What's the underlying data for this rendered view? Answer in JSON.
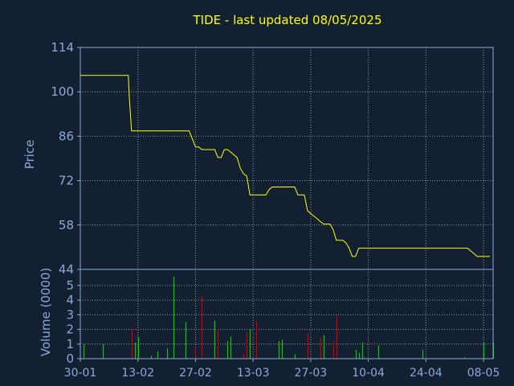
{
  "chart_data": [
    {
      "type": "line",
      "title": "TIDE - last updated 08/05/2025",
      "ylabel": "Price",
      "ylim": [
        44,
        114
      ],
      "y_ticks": [
        "114",
        "100",
        "86",
        "72",
        "58",
        "44"
      ],
      "x_ticks": [
        "30-01",
        "13-02",
        "27-02",
        "13-03",
        "27-03",
        "10-04",
        "24-04",
        "08-05"
      ],
      "grid": true,
      "colors": {
        "background": "#132032",
        "text": "#8aa8d8",
        "title": "#ffff00",
        "grid": "#cccccc",
        "line": "#ffff00"
      },
      "series": [
        {
          "values": [
            [
              0,
              105.2
            ],
            [
              1,
              105.2
            ],
            [
              2,
              105.2
            ],
            [
              3,
              105.2
            ],
            [
              4,
              105.2
            ],
            [
              5,
              105.2
            ],
            [
              6,
              105.2
            ],
            [
              7,
              105.2
            ],
            [
              8,
              105.2
            ],
            [
              9,
              105.2
            ],
            [
              10,
              105.2
            ],
            [
              11,
              105.2
            ],
            [
              12,
              105.2
            ],
            [
              13,
              105.2
            ],
            [
              14,
              105.2
            ],
            [
              15,
              105.2
            ],
            [
              15.3,
              98.5
            ],
            [
              16,
              87.7
            ],
            [
              17,
              87.7
            ],
            [
              18,
              87.7
            ],
            [
              19,
              87.7
            ],
            [
              20,
              87.7
            ],
            [
              21,
              87.7
            ],
            [
              22,
              87.7
            ],
            [
              23,
              87.7
            ],
            [
              24,
              87.7
            ],
            [
              25,
              87.7
            ],
            [
              26,
              87.7
            ],
            [
              27,
              87.7
            ],
            [
              28,
              87.7
            ],
            [
              29,
              87.7
            ],
            [
              30,
              87.7
            ],
            [
              31,
              87.7
            ],
            [
              32,
              87.7
            ],
            [
              33,
              87.7
            ],
            [
              34,
              87.7
            ],
            [
              35,
              85.2
            ],
            [
              36,
              82.6
            ],
            [
              37,
              82.6
            ],
            [
              38,
              81.8
            ],
            [
              39,
              81.8
            ],
            [
              40,
              81.8
            ],
            [
              41,
              81.8
            ],
            [
              42,
              81.8
            ],
            [
              43,
              79.3
            ],
            [
              44,
              79.3
            ],
            [
              45,
              81.8
            ],
            [
              46,
              81.8
            ],
            [
              47,
              81.0
            ],
            [
              48,
              80.1
            ],
            [
              49,
              79.3
            ],
            [
              50,
              75.9
            ],
            [
              51,
              74.2
            ],
            [
              52,
              73.4
            ],
            [
              53,
              67.5
            ],
            [
              54,
              67.5
            ],
            [
              55,
              67.5
            ],
            [
              56,
              67.5
            ],
            [
              57,
              67.5
            ],
            [
              58,
              67.5
            ],
            [
              59,
              69.2
            ],
            [
              60,
              70.0
            ],
            [
              61,
              70.0
            ],
            [
              62,
              70.0
            ],
            [
              63,
              70.0
            ],
            [
              64,
              70.0
            ],
            [
              65,
              70.0
            ],
            [
              66,
              70.0
            ],
            [
              67,
              70.0
            ],
            [
              68,
              67.5
            ],
            [
              69,
              67.5
            ],
            [
              70,
              67.5
            ],
            [
              71,
              62.5
            ],
            [
              72,
              61.6
            ],
            [
              73,
              60.8
            ],
            [
              74,
              60.0
            ],
            [
              75,
              59.1
            ],
            [
              76,
              58.3
            ],
            [
              77,
              58.3
            ],
            [
              78,
              58.3
            ],
            [
              79,
              56.6
            ],
            [
              80,
              53.2
            ],
            [
              81,
              53.2
            ],
            [
              82,
              53.2
            ],
            [
              83,
              52.4
            ],
            [
              84,
              50.7
            ],
            [
              85,
              48.1
            ],
            [
              86,
              48.1
            ],
            [
              87,
              50.7
            ],
            [
              88,
              50.7
            ],
            [
              89,
              50.7
            ],
            [
              90,
              50.7
            ],
            [
              91,
              50.7
            ],
            [
              92,
              50.7
            ],
            [
              93,
              50.7
            ],
            [
              94,
              50.7
            ],
            [
              95,
              50.7
            ],
            [
              96,
              50.7
            ],
            [
              97,
              50.7
            ],
            [
              98,
              50.7
            ],
            [
              99,
              50.7
            ],
            [
              100,
              50.7
            ],
            [
              101,
              50.7
            ],
            [
              102,
              50.7
            ],
            [
              103,
              50.7
            ],
            [
              104,
              50.7
            ],
            [
              105,
              50.7
            ],
            [
              106,
              50.7
            ],
            [
              107,
              50.7
            ],
            [
              108,
              50.7
            ],
            [
              109,
              50.7
            ],
            [
              110,
              50.7
            ],
            [
              111,
              50.7
            ],
            [
              112,
              50.7
            ],
            [
              113,
              50.7
            ],
            [
              114,
              50.7
            ],
            [
              115,
              50.7
            ],
            [
              116,
              50.7
            ],
            [
              117,
              50.7
            ],
            [
              118,
              50.7
            ],
            [
              119,
              50.7
            ],
            [
              120,
              50.7
            ],
            [
              121,
              50.7
            ],
            [
              122,
              49.8
            ],
            [
              123,
              49.0
            ],
            [
              124,
              48.1
            ],
            [
              125,
              48.1
            ],
            [
              126,
              48.1
            ],
            [
              127,
              48.1
            ],
            [
              128,
              48.1
            ]
          ]
        }
      ]
    },
    {
      "type": "bar",
      "ylabel": "Volume (0000)",
      "ylim": [
        0,
        5.5
      ],
      "y_ticks": [
        "5",
        "4",
        "3",
        "2",
        "1",
        "0"
      ],
      "x_ticks": [
        "30-01",
        "13-02",
        "27-02",
        "13-03",
        "27-03",
        "10-04",
        "24-04",
        "08-05"
      ],
      "grid": true,
      "colors": {
        "up": "#00cc00",
        "down": "#cc0000"
      },
      "bars": [
        {
          "x": 1,
          "v": 1.0,
          "c": "up"
        },
        {
          "x": 7,
          "v": 1.0,
          "c": "up"
        },
        {
          "x": 16,
          "v": 2.0,
          "c": "down"
        },
        {
          "x": 17,
          "v": 1.1,
          "c": "up"
        },
        {
          "x": 18,
          "v": 1.5,
          "c": "up"
        },
        {
          "x": 22,
          "v": 0.2,
          "c": "up"
        },
        {
          "x": 24,
          "v": 0.5,
          "c": "up"
        },
        {
          "x": 27,
          "v": 0.7,
          "c": "up"
        },
        {
          "x": 29,
          "v": 5.6,
          "c": "up"
        },
        {
          "x": 33,
          "v": 2.5,
          "c": "up"
        },
        {
          "x": 36,
          "v": 0.8,
          "c": "down"
        },
        {
          "x": 38,
          "v": 4.3,
          "c": "down"
        },
        {
          "x": 42,
          "v": 2.6,
          "c": "up"
        },
        {
          "x": 43,
          "v": 2.0,
          "c": "down"
        },
        {
          "x": 46,
          "v": 1.2,
          "c": "up"
        },
        {
          "x": 47,
          "v": 1.5,
          "c": "up"
        },
        {
          "x": 51,
          "v": 0.3,
          "c": "down"
        },
        {
          "x": 52,
          "v": 1.8,
          "c": "down"
        },
        {
          "x": 53,
          "v": 2.0,
          "c": "up"
        },
        {
          "x": 55,
          "v": 2.6,
          "c": "down"
        },
        {
          "x": 62,
          "v": 1.2,
          "c": "up"
        },
        {
          "x": 63,
          "v": 1.3,
          "c": "up"
        },
        {
          "x": 67,
          "v": 0.3,
          "c": "up"
        },
        {
          "x": 71,
          "v": 1.7,
          "c": "down"
        },
        {
          "x": 75,
          "v": 1.4,
          "c": "down"
        },
        {
          "x": 76,
          "v": 1.6,
          "c": "up"
        },
        {
          "x": 79,
          "v": 1.2,
          "c": "down"
        },
        {
          "x": 80,
          "v": 2.9,
          "c": "down"
        },
        {
          "x": 86,
          "v": 0.6,
          "c": "up"
        },
        {
          "x": 87,
          "v": 0.4,
          "c": "up"
        },
        {
          "x": 88,
          "v": 1.1,
          "c": "up"
        },
        {
          "x": 93,
          "v": 0.9,
          "c": "up"
        },
        {
          "x": 107,
          "v": 0.6,
          "c": "up"
        },
        {
          "x": 120,
          "v": 0.1,
          "c": "up"
        },
        {
          "x": 126,
          "v": 1.1,
          "c": "up"
        },
        {
          "x": 129,
          "v": 1.1,
          "c": "up"
        }
      ]
    }
  ]
}
